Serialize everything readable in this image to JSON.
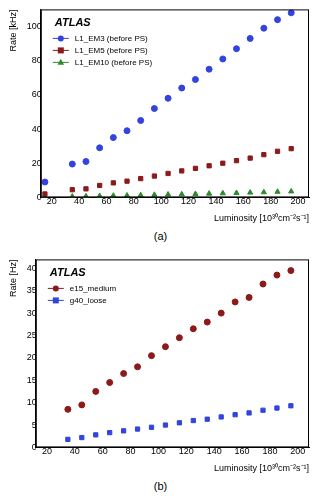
{
  "chart_data": [
    {
      "type": "scatter",
      "caption": "(a)",
      "annotation": "ATLAS",
      "x_label": "Luminosity [10³⁰cm⁻²s⁻¹]",
      "y_label": "Rate [kHz]",
      "xlim": [
        12,
        208
      ],
      "xticks": [
        20,
        40,
        60,
        80,
        100,
        120,
        140,
        160,
        180,
        200
      ],
      "ylim": [
        0,
        110
      ],
      "yticks": [
        0,
        20,
        40,
        60,
        80,
        100
      ],
      "grid": false,
      "legend": "upper left",
      "x": [
        15,
        35,
        45,
        55,
        65,
        75,
        85,
        95,
        105,
        115,
        125,
        135,
        145,
        155,
        165,
        175,
        185,
        195
      ],
      "series": [
        {
          "name": "L1_EM3 (before PS)",
          "color": "#3344dd",
          "marker": "circle",
          "line_style": "none",
          "values": [
            9,
            19.5,
            21,
            29,
            35,
            39,
            45,
            52,
            58,
            64,
            69,
            75,
            81,
            87,
            93,
            99,
            104,
            108
          ]
        },
        {
          "name": "L1_EM5 (before PS)",
          "color": "#8b1a1a",
          "marker": "square",
          "line_style": "none",
          "values": [
            2,
            4.5,
            5,
            7,
            8.5,
            9.5,
            11,
            12.5,
            14,
            15.5,
            17,
            18.5,
            20,
            21.5,
            23,
            25,
            27,
            28.5
          ]
        },
        {
          "name": "L1_EM10 (before PS)",
          "color": "#2e8b2e",
          "marker": "triangle",
          "line_style": "none",
          "values": [
            0.2,
            0.5,
            0.6,
            0.8,
            1,
            1.1,
            1.3,
            1.5,
            1.7,
            1.8,
            2,
            2.2,
            2.4,
            2.6,
            2.8,
            3,
            3.3,
            3.5
          ]
        }
      ]
    },
    {
      "type": "scatter",
      "caption": "(b)",
      "annotation": "ATLAS",
      "x_label": "Luminosity [10³⁰cm⁻²s⁻¹]",
      "y_label": "Rate [Hz]",
      "xlim": [
        12,
        208
      ],
      "xticks": [
        20,
        40,
        60,
        80,
        100,
        120,
        140,
        160,
        180,
        200
      ],
      "ylim": [
        0,
        42
      ],
      "yticks": [
        0,
        5,
        10,
        15,
        20,
        25,
        30,
        35,
        40
      ],
      "grid": false,
      "legend": "upper left",
      "x": [
        35,
        45,
        55,
        65,
        75,
        85,
        95,
        105,
        115,
        125,
        135,
        145,
        155,
        165,
        175,
        185,
        195
      ],
      "series": [
        {
          "name": "e15_medium",
          "color": "#8b1a1a",
          "marker": "circle",
          "line_style": "none",
          "values": [
            8.5,
            9.5,
            12.5,
            14.5,
            16.5,
            18,
            20.5,
            22.5,
            24.5,
            26.5,
            28,
            30,
            32.5,
            33.5,
            36.5,
            38.5,
            39.5
          ]
        },
        {
          "name": "g40_loose",
          "color": "#3344dd",
          "marker": "square",
          "line_style": "none",
          "values": [
            1.8,
            2.2,
            2.8,
            3.3,
            3.7,
            4.1,
            4.5,
            5,
            5.5,
            6,
            6.3,
            6.8,
            7.3,
            7.7,
            8.3,
            8.8,
            9.3
          ]
        }
      ]
    }
  ]
}
